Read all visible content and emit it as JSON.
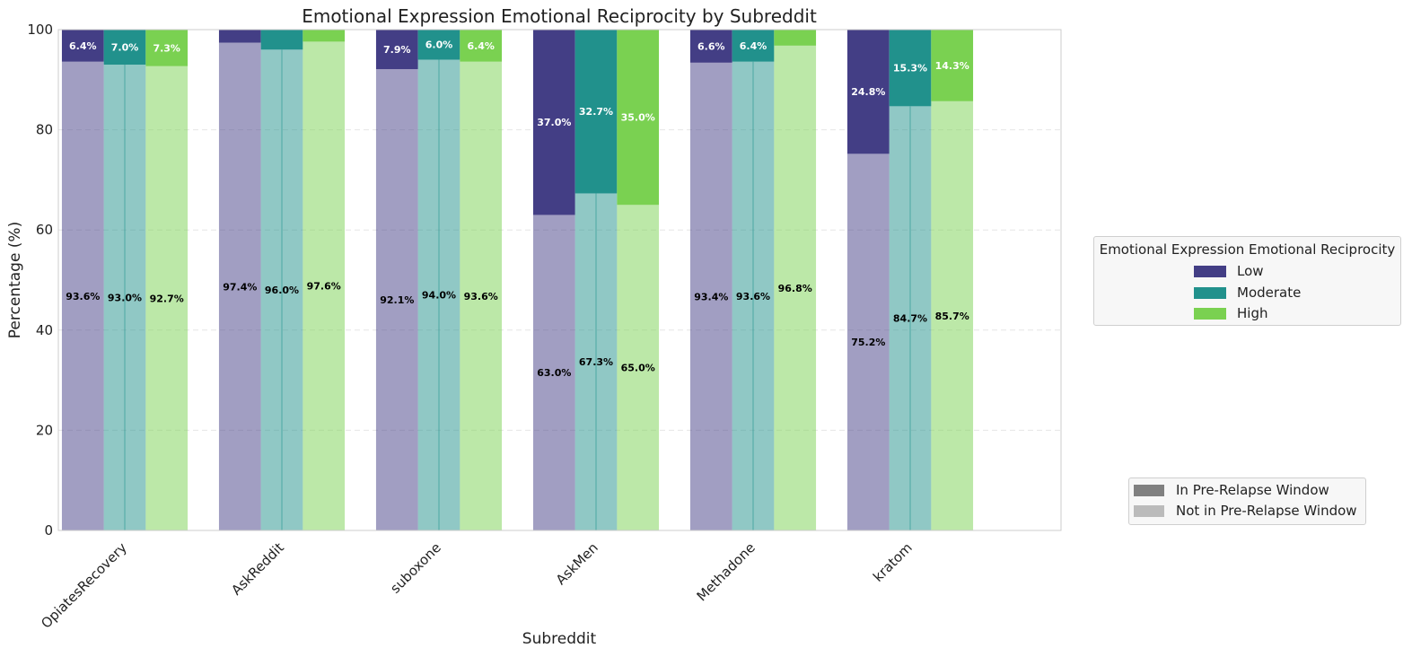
{
  "chart_data": {
    "type": "bar",
    "stacked": true,
    "title": "Emotional Expression Emotional Reciprocity by Subreddit",
    "xlabel": "Subreddit",
    "ylabel": "Percentage (%)",
    "ylim": [
      0,
      100
    ],
    "yticks": [
      0,
      20,
      40,
      60,
      80,
      100
    ],
    "grid": true,
    "categories": [
      "OpiatesRecovery",
      "AskReddit",
      "suboxone",
      "AskMen",
      "Methadone",
      "kratom"
    ],
    "series": [
      {
        "name": "Low",
        "color": "#433e85",
        "not_in_window": [
          93.6,
          97.4,
          92.1,
          63.0,
          93.4,
          75.2
        ],
        "in_window": [
          6.4,
          2.6,
          7.9,
          37.0,
          6.6,
          24.8
        ],
        "not_in_window_labels": [
          "93.6%",
          "97.4%",
          "92.1%",
          "63.0%",
          "93.4%",
          "75.2%"
        ],
        "in_window_labels": [
          "6.4%",
          "",
          "7.9%",
          "37.0%",
          "6.6%",
          "24.8%"
        ]
      },
      {
        "name": "Moderate",
        "color": "#21918c",
        "not_in_window": [
          93.0,
          96.0,
          94.0,
          67.3,
          93.6,
          84.7
        ],
        "in_window": [
          7.0,
          4.0,
          6.0,
          32.7,
          6.4,
          15.3
        ],
        "not_in_window_labels": [
          "93.0%",
          "96.0%",
          "94.0%",
          "67.3%",
          "93.6%",
          "84.7%"
        ],
        "in_window_labels": [
          "7.0%",
          "",
          "6.0%",
          "32.7%",
          "6.4%",
          "15.3%"
        ]
      },
      {
        "name": "High",
        "color": "#7ad151",
        "not_in_window": [
          92.7,
          97.6,
          93.6,
          65.0,
          96.8,
          85.7
        ],
        "in_window": [
          7.3,
          2.4,
          6.4,
          35.0,
          3.2,
          14.3
        ],
        "not_in_window_labels": [
          "92.7%",
          "97.6%",
          "93.6%",
          "65.0%",
          "96.8%",
          "85.7%"
        ],
        "in_window_labels": [
          "7.3%",
          "",
          "6.4%",
          "35.0%",
          "",
          "14.3%"
        ]
      }
    ],
    "legend": {
      "title": "Emotional Expression Emotional Reciprocity",
      "placement": "right",
      "items": [
        "Low",
        "Moderate",
        "High"
      ]
    },
    "window_legend": {
      "placement": "lower-right",
      "items": [
        {
          "label": "In Pre-Relapse Window",
          "color": "#808080"
        },
        {
          "label": "Not in Pre-Relapse Window",
          "color": "#bbbbbb"
        }
      ]
    }
  }
}
